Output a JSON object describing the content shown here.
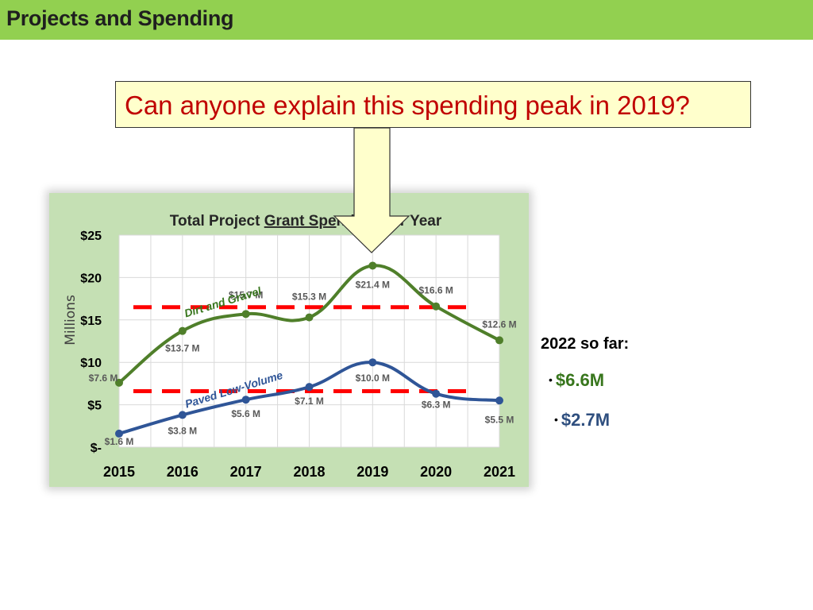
{
  "header": {
    "title": "Projects and Spending"
  },
  "callout": {
    "text": "Can anyone explain this spending peak in 2019?"
  },
  "sidebar": {
    "heading": "2022 so far:",
    "items": [
      {
        "text": "$6.6M",
        "color": "#38761d"
      },
      {
        "text": "$2.7M",
        "color": "#2f4f7f"
      }
    ]
  },
  "colors": {
    "header_bg": "#92d050",
    "callout_bg": "#ffffcc",
    "callout_text": "#c00000",
    "chart_bg": "#c5e0b4",
    "dirt_line": "#4f7f2a",
    "paved_line": "#2f5597",
    "threshold": "#ff0000",
    "arrow_fill": "#ffffcc"
  },
  "chart_data": {
    "type": "line",
    "title_parts": [
      "Total Project ",
      "Grant Spe",
      "nding Per Year"
    ],
    "title": "Total Project Grant Spending Per Year",
    "ylabel": "Millions",
    "ylim": [
      0,
      25
    ],
    "yticks": [
      {
        "value": 0,
        "label": "$-"
      },
      {
        "value": 5,
        "label": "$5"
      },
      {
        "value": 10,
        "label": "$10"
      },
      {
        "value": 15,
        "label": "$15"
      },
      {
        "value": 20,
        "label": "$20"
      },
      {
        "value": 25,
        "label": "$25"
      }
    ],
    "categories": [
      "2015",
      "2016",
      "2017",
      "2018",
      "2019",
      "2020",
      "2021"
    ],
    "grid": true,
    "series": [
      {
        "name": "Dirt and Gravel",
        "values": [
          7.6,
          13.7,
          15.7,
          15.3,
          21.4,
          16.6,
          12.6
        ],
        "labels": [
          "$7.6 M",
          "$13.7 M",
          "$15.7 M",
          "$15.3 M",
          "$21.4 M",
          "$16.6 M",
          "$12.6 M"
        ],
        "color": "#4f7f2a"
      },
      {
        "name": "Paved Low-Volume",
        "values": [
          1.6,
          3.8,
          5.6,
          7.1,
          10.0,
          6.3,
          5.5
        ],
        "labels": [
          "$1.6 M",
          "$3.8 M",
          "$5.6 M",
          "$7.1 M",
          "$10.0 M",
          "$6.3 M",
          "$5.5 M"
        ],
        "color": "#2f5597"
      }
    ],
    "reference_lines": [
      {
        "value": 16.5,
        "style": "dashed",
        "color": "#ff0000"
      },
      {
        "value": 6.6,
        "style": "dashed",
        "color": "#ff0000"
      }
    ]
  }
}
